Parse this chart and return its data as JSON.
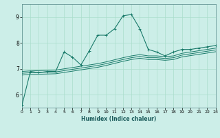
{
  "xlabel": "Humidex (Indice chaleur)",
  "background_color": "#cceee8",
  "grid_color": "#aaddcc",
  "line_color": "#1a7a6a",
  "xlim": [
    0,
    23
  ],
  "ylim": [
    5.5,
    9.5
  ],
  "yticks": [
    6,
    7,
    8,
    9
  ],
  "xticks": [
    0,
    1,
    2,
    3,
    4,
    5,
    6,
    7,
    8,
    9,
    10,
    11,
    12,
    13,
    14,
    15,
    16,
    17,
    18,
    19,
    20,
    21,
    22,
    23
  ],
  "series_main": [
    [
      0,
      5.6
    ],
    [
      1,
      6.9
    ],
    [
      2,
      6.85
    ],
    [
      3,
      6.9
    ],
    [
      4,
      6.9
    ],
    [
      5,
      7.65
    ],
    [
      6,
      7.45
    ],
    [
      7,
      7.15
    ],
    [
      8,
      7.7
    ],
    [
      9,
      8.3
    ],
    [
      10,
      8.3
    ],
    [
      11,
      8.55
    ],
    [
      12,
      9.05
    ],
    [
      13,
      9.1
    ],
    [
      14,
      8.55
    ],
    [
      15,
      7.75
    ],
    [
      16,
      7.65
    ],
    [
      17,
      7.5
    ],
    [
      18,
      7.65
    ],
    [
      19,
      7.75
    ],
    [
      20,
      7.75
    ],
    [
      21,
      7.8
    ],
    [
      22,
      7.85
    ],
    [
      23,
      7.9
    ]
  ],
  "series_band1": [
    [
      0,
      6.9
    ],
    [
      1,
      6.92
    ],
    [
      2,
      6.93
    ],
    [
      3,
      6.94
    ],
    [
      4,
      6.95
    ],
    [
      5,
      7.0
    ],
    [
      6,
      7.05
    ],
    [
      7,
      7.1
    ],
    [
      8,
      7.15
    ],
    [
      9,
      7.2
    ],
    [
      10,
      7.27
    ],
    [
      11,
      7.35
    ],
    [
      12,
      7.43
    ],
    [
      13,
      7.5
    ],
    [
      14,
      7.55
    ],
    [
      15,
      7.5
    ],
    [
      16,
      7.5
    ],
    [
      17,
      7.47
    ],
    [
      18,
      7.5
    ],
    [
      19,
      7.6
    ],
    [
      20,
      7.65
    ],
    [
      21,
      7.7
    ],
    [
      22,
      7.75
    ],
    [
      23,
      7.8
    ]
  ],
  "series_band2": [
    [
      0,
      6.83
    ],
    [
      1,
      6.85
    ],
    [
      2,
      6.86
    ],
    [
      3,
      6.87
    ],
    [
      4,
      6.88
    ],
    [
      5,
      6.93
    ],
    [
      6,
      6.98
    ],
    [
      7,
      7.03
    ],
    [
      8,
      7.08
    ],
    [
      9,
      7.13
    ],
    [
      10,
      7.2
    ],
    [
      11,
      7.28
    ],
    [
      12,
      7.36
    ],
    [
      13,
      7.43
    ],
    [
      14,
      7.48
    ],
    [
      15,
      7.43
    ],
    [
      16,
      7.43
    ],
    [
      17,
      7.4
    ],
    [
      18,
      7.43
    ],
    [
      19,
      7.53
    ],
    [
      20,
      7.58
    ],
    [
      21,
      7.63
    ],
    [
      22,
      7.68
    ],
    [
      23,
      7.73
    ]
  ],
  "series_band3": [
    [
      0,
      6.76
    ],
    [
      1,
      6.78
    ],
    [
      2,
      6.79
    ],
    [
      3,
      6.8
    ],
    [
      4,
      6.81
    ],
    [
      5,
      6.86
    ],
    [
      6,
      6.91
    ],
    [
      7,
      6.96
    ],
    [
      8,
      7.01
    ],
    [
      9,
      7.06
    ],
    [
      10,
      7.13
    ],
    [
      11,
      7.21
    ],
    [
      12,
      7.29
    ],
    [
      13,
      7.36
    ],
    [
      14,
      7.41
    ],
    [
      15,
      7.36
    ],
    [
      16,
      7.36
    ],
    [
      17,
      7.33
    ],
    [
      18,
      7.36
    ],
    [
      19,
      7.46
    ],
    [
      20,
      7.51
    ],
    [
      21,
      7.56
    ],
    [
      22,
      7.61
    ],
    [
      23,
      7.66
    ]
  ]
}
